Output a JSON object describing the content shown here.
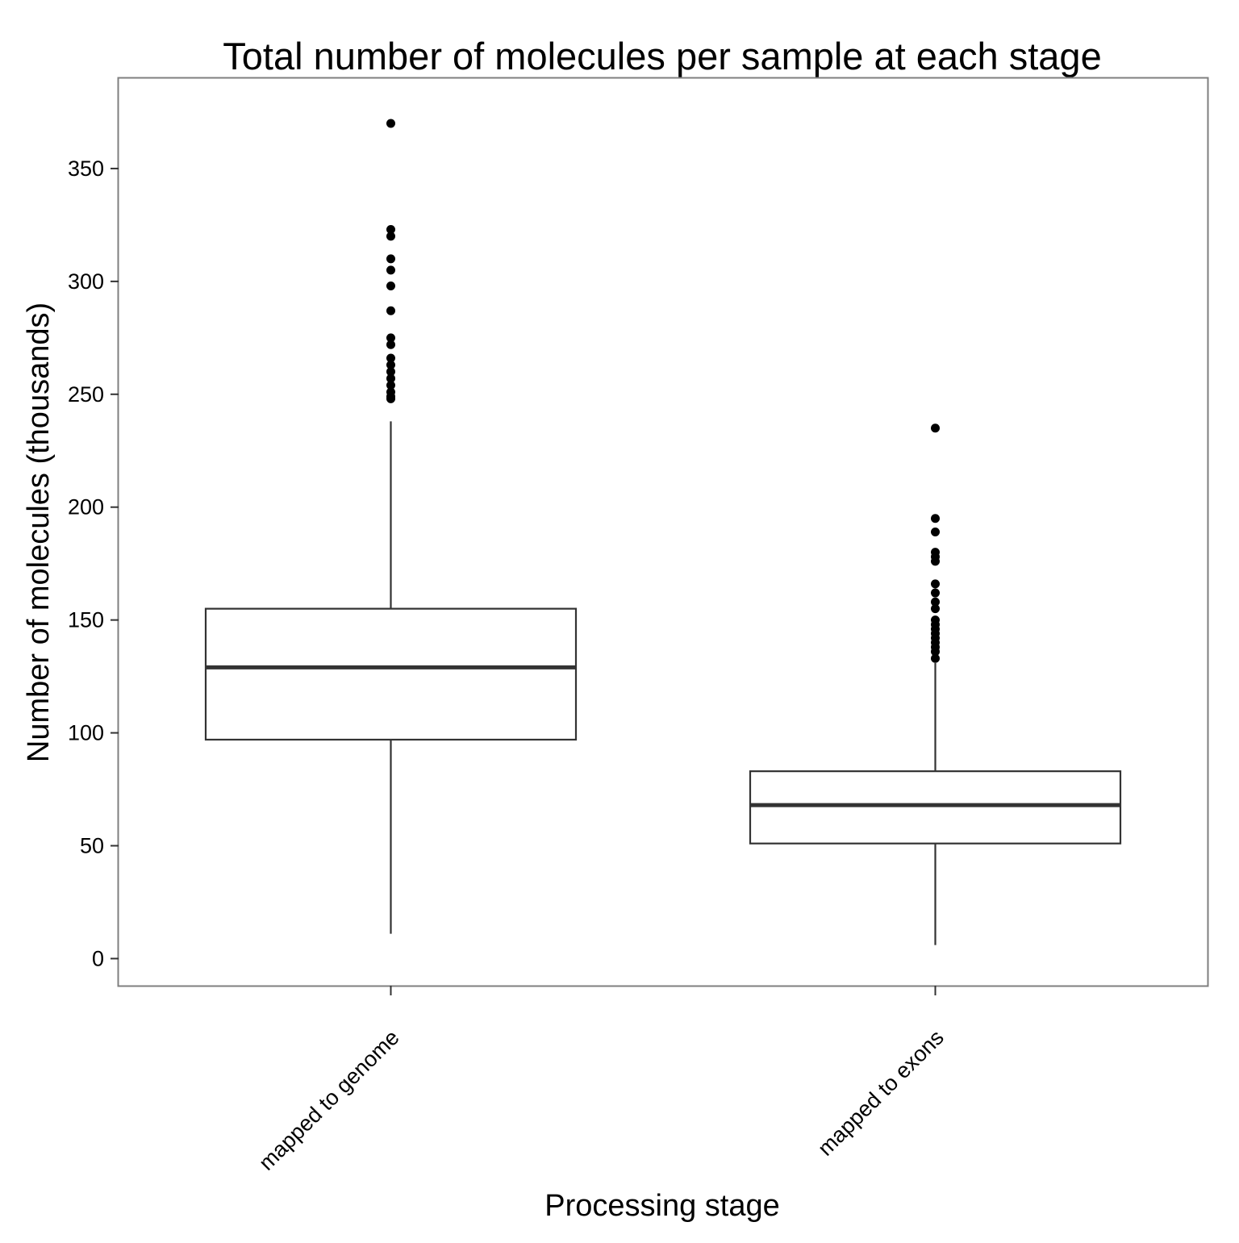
{
  "chart_data": {
    "type": "box",
    "title": "Total number of molecules per sample at each stage",
    "xlabel": "Processing stage",
    "ylabel": "Number of molecules (thousands)",
    "ylim": [
      -12,
      390
    ],
    "yticks": [
      0,
      50,
      100,
      150,
      200,
      250,
      300,
      350
    ],
    "grid": false,
    "categories": [
      "mapped to genome",
      "mapped to exons"
    ],
    "boxes": [
      {
        "category": "mapped to genome",
        "whisker_low": 11,
        "q1": 97,
        "median": 129,
        "q3": 155,
        "whisker_high": 238,
        "outliers": [
          370,
          323,
          320,
          310,
          305,
          298,
          287,
          275,
          272,
          266,
          263,
          260,
          257,
          254,
          251,
          249,
          248
        ]
      },
      {
        "category": "mapped to exons",
        "whisker_low": 6,
        "q1": 51,
        "median": 68,
        "q3": 83,
        "whisker_high": 131,
        "outliers": [
          235,
          195,
          189,
          180,
          178,
          176,
          166,
          162,
          158,
          155,
          150,
          148,
          146,
          144,
          142,
          140,
          138,
          136,
          133
        ]
      }
    ]
  }
}
